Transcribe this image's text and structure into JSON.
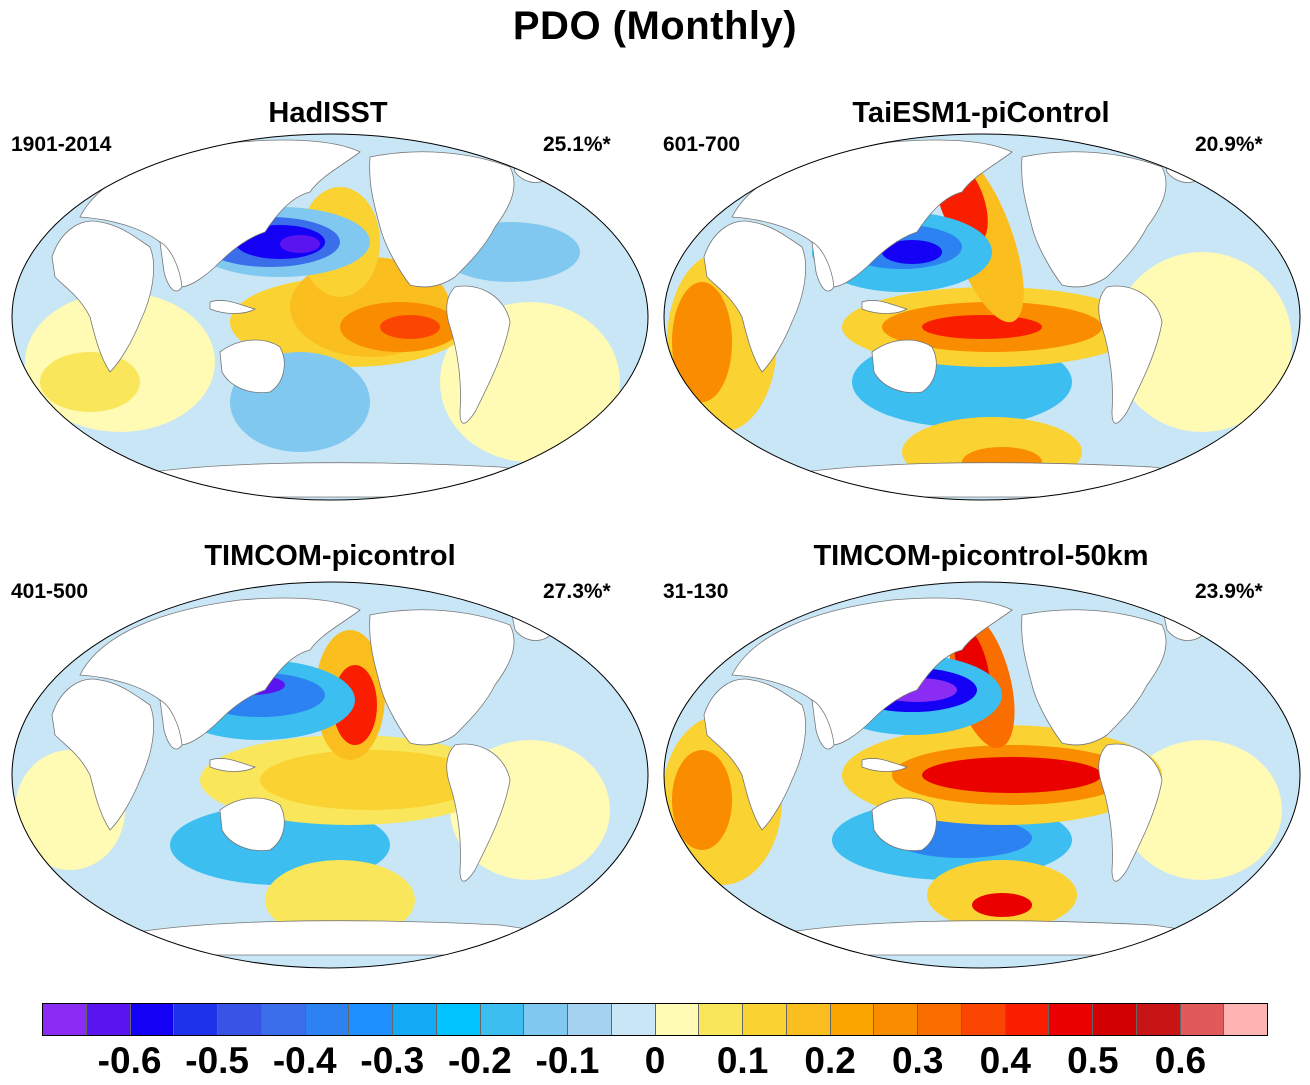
{
  "title": "PDO (Monthly)",
  "panels": [
    {
      "name": "HadISST",
      "period": "1901-2014",
      "variance": "25.1%*"
    },
    {
      "name": "TaiESM1-piControl",
      "period": "601-700",
      "variance": "20.9%*"
    },
    {
      "name": "TIMCOM-picontrol",
      "period": "401-500",
      "variance": "27.3%*"
    },
    {
      "name": "TIMCOM-picontrol-50km",
      "period": "31-130",
      "variance": "23.9%*"
    }
  ],
  "colorbar": {
    "colors": [
      "#8b2cf5",
      "#5a14f0",
      "#1400f5",
      "#1e32eb",
      "#3754e6",
      "#3b6eeb",
      "#2b82f0",
      "#1e90ff",
      "#14aaf5",
      "#00c3ff",
      "#3cbef0",
      "#80c8f0",
      "#a5d2f0",
      "#c8e6f5",
      "#fffab4",
      "#fae65a",
      "#fad232",
      "#fabe1e",
      "#faa500",
      "#fa8c00",
      "#fa6e00",
      "#fa4600",
      "#fa1e00",
      "#eb0000",
      "#d20000",
      "#c81414",
      "#e15a5a",
      "#ffb4b4"
    ],
    "tick_labels": [
      "-0.6",
      "-0.5",
      "-0.4",
      "-0.3",
      "-0.2",
      "-0.1",
      "0",
      "0.1",
      "0.2",
      "0.3",
      "0.4",
      "0.5",
      "0.6"
    ]
  }
}
